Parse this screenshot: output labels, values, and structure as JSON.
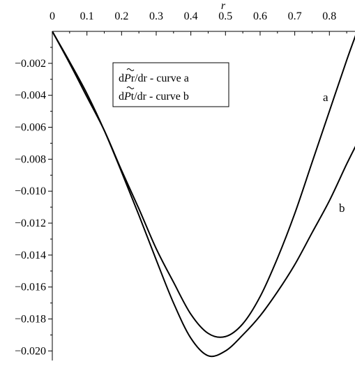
{
  "chart_data": {
    "type": "line",
    "xlabel": "r",
    "ylabel": "",
    "xlim": [
      0,
      0.88
    ],
    "ylim": [
      -0.0205,
      0
    ],
    "x_ticks": [
      0,
      0.1,
      0.2,
      0.3,
      0.4,
      0.5,
      0.6,
      0.7,
      0.8
    ],
    "x_tick_labels": [
      "0",
      "0.1",
      "0.2",
      "0.3",
      "0.4",
      "0.5",
      "0.6",
      "0.7",
      "0.8"
    ],
    "y_ticks": [
      -0.002,
      -0.004,
      -0.006,
      -0.008,
      -0.01,
      -0.012,
      -0.014,
      -0.016,
      -0.018,
      -0.02
    ],
    "y_tick_labels": [
      "-0.002",
      "-0.004",
      "-0.006",
      "-0.008",
      "-0.010",
      "-0.012",
      "-0.014",
      "-0.016",
      "-0.018",
      "-0.020"
    ],
    "legend": {
      "placement": "top-left",
      "entries": [
        {
          "prefix": "d",
          "symbol": "P",
          "rest": "r/dr - curve a"
        },
        {
          "prefix": "d",
          "symbol": "P",
          "rest": "t/dr - curve b"
        }
      ]
    },
    "series": [
      {
        "name": "a",
        "x": [
          0,
          0.05,
          0.1,
          0.15,
          0.2,
          0.25,
          0.3,
          0.35,
          0.4,
          0.45,
          0.5,
          0.55,
          0.6,
          0.65,
          0.7,
          0.75,
          0.8,
          0.85,
          0.88
        ],
        "y": [
          0,
          -0.002,
          -0.0041,
          -0.0062,
          -0.0087,
          -0.0111,
          -0.0136,
          -0.0157,
          -0.0177,
          -0.0189,
          -0.0191,
          -0.0183,
          -0.0166,
          -0.0142,
          -0.0114,
          -0.0082,
          -0.005,
          -0.0018,
          0.0
        ]
      },
      {
        "name": "b",
        "x": [
          0,
          0.05,
          0.1,
          0.15,
          0.2,
          0.25,
          0.3,
          0.35,
          0.4,
          0.45,
          0.5,
          0.55,
          0.6,
          0.65,
          0.7,
          0.75,
          0.8,
          0.85,
          0.88
        ],
        "y": [
          0,
          -0.0019,
          -0.0039,
          -0.0062,
          -0.0088,
          -0.0115,
          -0.0143,
          -0.017,
          -0.0192,
          -0.0203,
          -0.02,
          -0.019,
          -0.0178,
          -0.0163,
          -0.0146,
          -0.0126,
          -0.0106,
          -0.0083,
          -0.007
        ]
      }
    ]
  }
}
